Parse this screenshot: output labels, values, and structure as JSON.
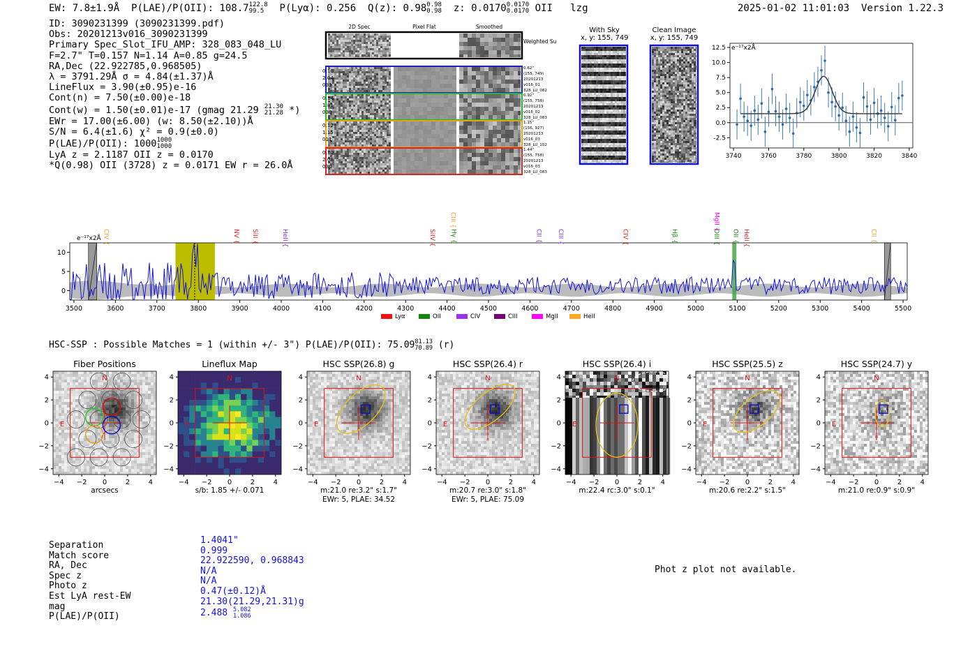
{
  "header": {
    "ew": "EW: 7.8±1.9Å",
    "plae_label": "P(LAE)/P(OII): 108.7",
    "plae_hi": "122.8",
    "plae_lo": "99.5",
    "plya": "P(Lyα): 0.256",
    "q_label": "Q(z): 0.98",
    "q_hi": "0.98",
    "q_lo": "0.98",
    "z_label": "z: 0.0170",
    "z_hi": "0.0170",
    "z_lo": "0.0170",
    "line": "OII",
    "flag": "lzg",
    "timestamp": "2025-01-02 11:01:03",
    "version": "Version 1.22.3"
  },
  "info": {
    "id": "ID: 3090231399 (3090231399.pdf)",
    "obs": "Obs: 20201213v016_3090231399",
    "primary": "Primary Spec_Slot_IFU_AMP: 328_083_048_LU",
    "params": "F=2.7\"  T=0.157  N=1.14  A=0.85  g=24.5",
    "radec": "RA,Dec (22.922785,0.968505)",
    "lambda": "λ = 3791.29Å  σ = 4.84(±1.37)Å",
    "lineflux": "LineFlux = 3.90(±0.95)e-16",
    "contn": "Cont(n) = 7.50(±0.00)e-18",
    "contw_pre": "Cont(w) = 1.50(±0.01)e-17 (gmag 21.29",
    "contw_hi": "21.30",
    "contw_lo": "21.28",
    "contw_post": "*)",
    "ewr": "EWr = 17.00(±6.00) (w: 8.50(±2.10))Å",
    "sn": "S/N = 6.4(±1.6)  χ² = 0.9(±0.0)",
    "plae_pre": "P(LAE)/P(OII): 1000",
    "plae_hi": "1000",
    "plae_lo": "1000",
    "lya_z": "LyA z = 2.1187  OII z = 0.0170",
    "qline": "*Q(0.98) OII (3728) z = 0.0171  EW r = 26.0Å"
  },
  "cutouts": {
    "headers": [
      "2D Spec",
      "Pixel Flat",
      "Smoothed"
    ],
    "weighted": "Weighted Sum",
    "rows": [
      {
        "left": [
          "0.16",
          "2.04",
          "031"
        ],
        "right": [
          "0.62\"",
          "(155, 749)",
          "20201213",
          "v016_01",
          "328_LU_082"
        ],
        "color": "#1f1fcc"
      },
      {
        "left": [
          "0.14",
          "1.81",
          "030"
        ],
        "right": [
          "0.92\"",
          "(155, 758)",
          "20201213",
          "v016_02",
          "328_LU_083"
        ],
        "color": "#22bb22"
      },
      {
        "left": [
          "0.12",
          "1.15",
          "011"
        ],
        "right": [
          "1.15\"",
          "(156, 927)",
          "20201213",
          "v016_03",
          "328_LU_102"
        ],
        "color": "#e8a020"
      },
      {
        "left": [
          "0.10",
          "2.08",
          "030"
        ],
        "right": [
          "1.44\"",
          "(155, 758)",
          "20201213",
          "v016_03",
          "328_LU_083"
        ],
        "color": "#dd2222"
      }
    ]
  },
  "sky": {
    "with_sky_title": "With Sky",
    "with_sky_xy": "x, y: 155, 749",
    "clean_title": "Clean Image",
    "clean_xy": "x, y: 155, 749"
  },
  "zoom_chart": {
    "unit": "e⁻¹⁷x2Å"
  },
  "chart_data": [
    {
      "type": "scatter",
      "title": "Emission line zoom (fit)",
      "xlim": [
        3738,
        3842
      ],
      "ylim": [
        -4.2,
        13.2
      ],
      "x_ticks": [
        3740,
        3760,
        3780,
        3800,
        3820,
        3840
      ],
      "y_ticks": [
        -2.5,
        0.0,
        2.5,
        5.0,
        7.5,
        10.0,
        12.5
      ],
      "x": [
        3742,
        3744,
        3746,
        3748,
        3750,
        3752,
        3754,
        3756,
        3758,
        3760,
        3762,
        3764,
        3766,
        3768,
        3770,
        3772,
        3774,
        3776,
        3778,
        3780,
        3782,
        3784,
        3786,
        3788,
        3790,
        3792,
        3794,
        3796,
        3798,
        3800,
        3802,
        3804,
        3806,
        3808,
        3810,
        3812,
        3814,
        3816,
        3818,
        3820,
        3822,
        3824,
        3826,
        3828,
        3830,
        3832,
        3834,
        3836
      ],
      "y": [
        -0.3,
        4.0,
        1.0,
        0.3,
        -0.5,
        2.0,
        0.5,
        3.2,
        -1.5,
        1.8,
        5.6,
        1.9,
        1.0,
        -0.3,
        2.3,
        0.8,
        -1.8,
        1.6,
        3.4,
        2.8,
        4.6,
        3.7,
        5.9,
        6.8,
        8.7,
        10.3,
        5.0,
        3.4,
        2.7,
        1.2,
        2.5,
        0.3,
        -1.5,
        1.0,
        -0.8,
        -1.7,
        4.2,
        2.7,
        0.5,
        3.3,
        1.5,
        2.0,
        0.8,
        -0.6,
        2.6,
        0.4,
        4.1,
        4.5
      ],
      "yerr": 2.5,
      "fit": {
        "continuum": 1.5,
        "amplitude": 6.2,
        "center": 3791.3,
        "sigma": 4.84
      },
      "xlabel": "",
      "ylabel": ""
    },
    {
      "type": "line",
      "title": "Full spectrum",
      "xlim": [
        3490,
        5510
      ],
      "ylim": [
        -2.5,
        12.5
      ],
      "x_ticks": [
        3500,
        3600,
        3700,
        3800,
        3900,
        4000,
        4100,
        4200,
        4300,
        4400,
        4500,
        4600,
        4700,
        4800,
        4900,
        5000,
        5100,
        5200,
        5300,
        5400,
        5500
      ],
      "y_ticks": [
        0,
        5,
        10
      ],
      "highlight_band": [
        3745,
        3840
      ],
      "line_marker": 3791.3,
      "oii_band": [
        5088,
        5098
      ],
      "hatched": [
        [
          3535,
          3555
        ],
        [
          5455,
          5470
        ]
      ],
      "line_labels": [
        {
          "text": "CIV",
          "wave": 3573,
          "color": "#e8a020",
          "tier": 1
        },
        {
          "text": "NV",
          "wave": 3887,
          "color": "#dd2222",
          "tier": 1
        },
        {
          "text": "SiII",
          "wave": 3933,
          "color": "#dd2222",
          "tier": 1
        },
        {
          "text": "HeII",
          "wave": 4005,
          "color": "#8a2be2",
          "tier": 1
        },
        {
          "text": "SiIV",
          "wave": 4360,
          "color": "#dd2222",
          "tier": 1
        },
        {
          "text": "CIII",
          "wave": 4410,
          "color": "#e8a020",
          "tier": 2
        },
        {
          "text": "Hγ",
          "wave": 4412,
          "color": "#1a8a1a",
          "tier": 1
        },
        {
          "text": "CII",
          "wave": 4617,
          "color": "#8a2be2",
          "tier": 1
        },
        {
          "text": "CIII",
          "wave": 4670,
          "color": "#8a2be2",
          "tier": 1
        },
        {
          "text": "CIV",
          "wave": 4826,
          "color": "#dd2222",
          "tier": 1
        },
        {
          "text": "Hβ",
          "wave": 4944,
          "color": "#1a8a1a",
          "tier": 1
        },
        {
          "text": "OIII",
          "wave": 5045,
          "color": "#1a8a1a",
          "tier": 1
        },
        {
          "text": "MgII",
          "wave": 5046,
          "color": "#ee00ee",
          "tier": 2
        },
        {
          "text": "OII",
          "wave": 5092,
          "color": "#1a8a1a",
          "tier": 1
        },
        {
          "text": "HeII",
          "wave": 5118,
          "color": "#dd2222",
          "tier": 1
        },
        {
          "text": "CII",
          "wave": 5425,
          "color": "#e8a020",
          "tier": 1
        }
      ],
      "legend": [
        {
          "name": "Lyα",
          "color": "#ee1111"
        },
        {
          "name": "OII",
          "color": "#118811"
        },
        {
          "name": "CIV",
          "color": "#9933ee"
        },
        {
          "name": "CIII",
          "color": "#770077"
        },
        {
          "name": "MgII",
          "color": "#ff00ff"
        },
        {
          "name": "HeII",
          "color": "#ffaa22"
        }
      ],
      "unit": "e⁻¹⁷x2Å"
    }
  ],
  "hsc": {
    "heading_pre": "HSC-SSP : Possible Matches = 1 (within +/- 3\")  P(LAE)/P(OII): 75.09",
    "heading_hi": "81.13",
    "heading_lo": "70.89",
    "heading_post": "(r)",
    "panels": [
      {
        "title": "Fiber Positions",
        "cap1": "arcsecs",
        "cap2": ""
      },
      {
        "title": "Lineflux Map",
        "cap1": "s/b: 1.85 +/- 0.071",
        "cap2": ""
      },
      {
        "title": "HSC SSP(26.8) g",
        "cap1": "m:21.0  re:3.2\"  s:1.7\"",
        "cap2": "EWr: 5, PLAE: 34.52"
      },
      {
        "title": "HSC SSP(26.4) r",
        "cap1": "m:20.7  re:3.0\"  s:1.8\"",
        "cap2": "EWr: 5, PLAE: 75.09"
      },
      {
        "title": "HSC SSP(26.4) i",
        "cap1": "m:22.4 rc:3.0\"  s:0.1\"",
        "cap2": ""
      },
      {
        "title": "HSC SSP(25.5) z",
        "cap1": "m:20.6  re:2.2\"  s:1.5\"",
        "cap2": ""
      },
      {
        "title": "HSC SSP(24.7) y",
        "cap1": "m:21.0  re:0.9\"  s:0.9\"",
        "cap2": ""
      }
    ],
    "axis_ticks": [
      "4",
      "2",
      "0",
      "−2",
      "−4"
    ],
    "x_ticks": [
      "−4",
      "−2",
      "0",
      "2",
      "4"
    ],
    "compass_n": "N",
    "compass_e": "E"
  },
  "match": {
    "labels": [
      "Separation",
      "Match score",
      "RA, Dec",
      "Spec z",
      "Photo z",
      "Est LyA rest-EW",
      "mag",
      "P(LAE)/P(OII)"
    ],
    "separation": "1.4041\"",
    "match_score": "0.999",
    "radec": "22.922590, 0.968843",
    "spec_z": "N/A",
    "photo_z": "N/A",
    "est_ew": "0.47(±0.12)Å",
    "mag": "21.30(21.29,21.31)g",
    "plae": "2.488",
    "plae_hi": "5.082",
    "plae_lo": "1.086"
  },
  "photz": "Phot z plot not available."
}
